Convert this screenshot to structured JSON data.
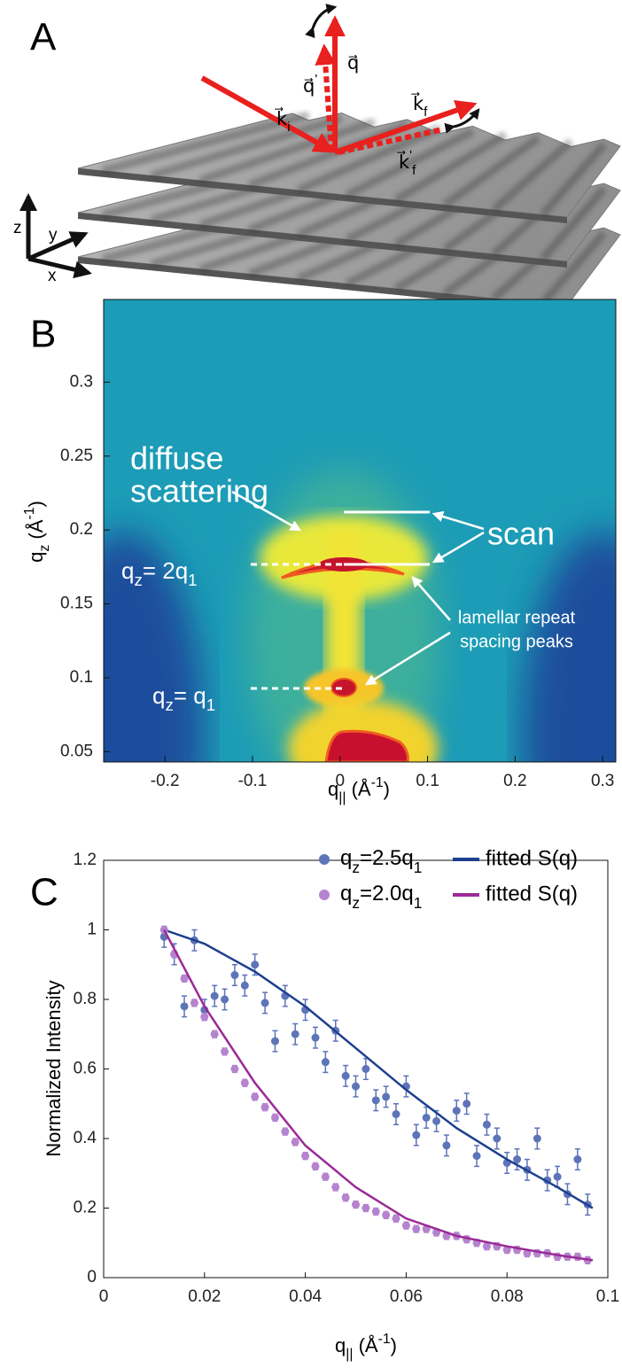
{
  "panel_labels": [
    "A",
    "B",
    "C"
  ],
  "diagram": {
    "k_i": [
      "k⃗",
      {
        "sub": "i"
      }
    ],
    "q": [
      "q⃗"
    ],
    "q_prime": [
      "q⃗",
      {
        "sup": "'"
      }
    ],
    "k_f": [
      "k⃗",
      {
        "sub": "f"
      }
    ],
    "k_f_prime": [
      "k⃗",
      {
        "sup": "'"
      },
      {
        "sub": "f"
      }
    ],
    "axes": [
      "z",
      "y",
      "x"
    ]
  },
  "chart_data": [
    {
      "type": "heatmap",
      "xlabel": [
        "q",
        {
          "sub": "||"
        },
        " (Å",
        {
          "sup": "-1"
        },
        ")"
      ],
      "ylabel": [
        "q",
        {
          "sub": "z"
        },
        " (Å",
        {
          "sup": "-1"
        },
        ")"
      ],
      "xlim": [
        -0.27,
        0.315
      ],
      "xticks": [
        -0.2,
        -0.1,
        0,
        0.1,
        0.2,
        0.3
      ],
      "ylim": [
        0.043,
        0.356
      ],
      "yticks": [
        0.05,
        0.1,
        0.15,
        0.2,
        0.25,
        0.3
      ],
      "annotations": {
        "diffuse": [
          "diffuse",
          "scattering"
        ],
        "scan": "scan",
        "lamellar": [
          "lamellar repeat",
          "spacing  peaks"
        ],
        "q2": [
          "q",
          {
            "sub": "z"
          },
          "= 2q",
          {
            "sub": "1"
          }
        ],
        "q1": [
          "q",
          {
            "sub": "z"
          },
          "= q",
          {
            "sub": "1"
          }
        ]
      }
    },
    {
      "type": "scatter",
      "xlabel": [
        "q",
        {
          "sub": "||"
        },
        " (Å",
        {
          "sup": "-1"
        },
        ")"
      ],
      "ylabel": "Normalized Intensity",
      "xlim": [
        0,
        0.1
      ],
      "xticks": [
        0,
        0.02,
        0.04,
        0.06,
        0.08,
        0.1
      ],
      "ylim": [
        0,
        1.2
      ],
      "yticks": [
        0,
        0.2,
        0.4,
        0.6,
        0.8,
        1,
        1.2
      ],
      "legend": "upper right",
      "series": [
        {
          "name": [
            "q",
            {
              "sub": "z"
            },
            "=2.5q",
            {
              "sub": "1"
            }
          ],
          "mode": "markers",
          "color": "#5d74b9",
          "error": 0.03,
          "x": [
            0.012,
            0.014,
            0.016,
            0.018,
            0.02,
            0.022,
            0.024,
            0.026,
            0.028,
            0.03,
            0.032,
            0.034,
            0.036,
            0.038,
            0.04,
            0.042,
            0.044,
            0.046,
            0.048,
            0.05,
            0.052,
            0.054,
            0.056,
            0.058,
            0.06,
            0.062,
            0.064,
            0.066,
            0.068,
            0.07,
            0.072,
            0.074,
            0.076,
            0.078,
            0.08,
            0.082,
            0.084,
            0.086,
            0.088,
            0.09,
            0.092,
            0.094,
            0.096
          ],
          "values": [
            0.98,
            0.93,
            0.78,
            0.97,
            0.77,
            0.81,
            0.8,
            0.87,
            0.84,
            0.9,
            0.79,
            0.68,
            0.81,
            0.7,
            0.77,
            0.69,
            0.62,
            0.71,
            0.58,
            0.55,
            0.6,
            0.51,
            0.52,
            0.47,
            0.55,
            0.41,
            0.46,
            0.45,
            0.38,
            0.48,
            0.5,
            0.35,
            0.44,
            0.4,
            0.33,
            0.34,
            0.31,
            0.4,
            0.28,
            0.29,
            0.24,
            0.34,
            0.21
          ]
        },
        {
          "name": "fitted S(q)",
          "mode": "line",
          "color": "#1d3f8e",
          "x": [
            0.012,
            0.02,
            0.03,
            0.04,
            0.05,
            0.06,
            0.07,
            0.08,
            0.09,
            0.097
          ],
          "values": [
            1.0,
            0.96,
            0.88,
            0.78,
            0.66,
            0.54,
            0.43,
            0.34,
            0.26,
            0.2
          ]
        },
        {
          "name": [
            "q",
            {
              "sub": "z"
            },
            "=2.0q",
            {
              "sub": "1"
            }
          ],
          "mode": "markers",
          "color": "#b583cf",
          "error": 0.01,
          "x": [
            0.012,
            0.014,
            0.016,
            0.018,
            0.02,
            0.022,
            0.024,
            0.026,
            0.028,
            0.03,
            0.032,
            0.034,
            0.036,
            0.038,
            0.04,
            0.042,
            0.044,
            0.046,
            0.048,
            0.05,
            0.052,
            0.054,
            0.056,
            0.058,
            0.06,
            0.062,
            0.064,
            0.066,
            0.068,
            0.07,
            0.072,
            0.074,
            0.076,
            0.078,
            0.08,
            0.082,
            0.084,
            0.086,
            0.088,
            0.09,
            0.092,
            0.094,
            0.096
          ],
          "values": [
            1.0,
            0.93,
            0.86,
            0.79,
            0.75,
            0.7,
            0.65,
            0.6,
            0.56,
            0.52,
            0.49,
            0.46,
            0.42,
            0.39,
            0.35,
            0.32,
            0.29,
            0.26,
            0.23,
            0.21,
            0.2,
            0.19,
            0.18,
            0.17,
            0.15,
            0.14,
            0.14,
            0.13,
            0.12,
            0.12,
            0.11,
            0.1,
            0.09,
            0.09,
            0.08,
            0.08,
            0.07,
            0.07,
            0.07,
            0.06,
            0.06,
            0.06,
            0.05
          ]
        },
        {
          "name": "fitted S(q)",
          "mode": "line",
          "color": "#9b2a97",
          "x": [
            0.012,
            0.02,
            0.03,
            0.04,
            0.05,
            0.06,
            0.07,
            0.08,
            0.09,
            0.097
          ],
          "values": [
            1.0,
            0.78,
            0.56,
            0.38,
            0.26,
            0.17,
            0.12,
            0.09,
            0.065,
            0.05
          ]
        }
      ]
    }
  ]
}
